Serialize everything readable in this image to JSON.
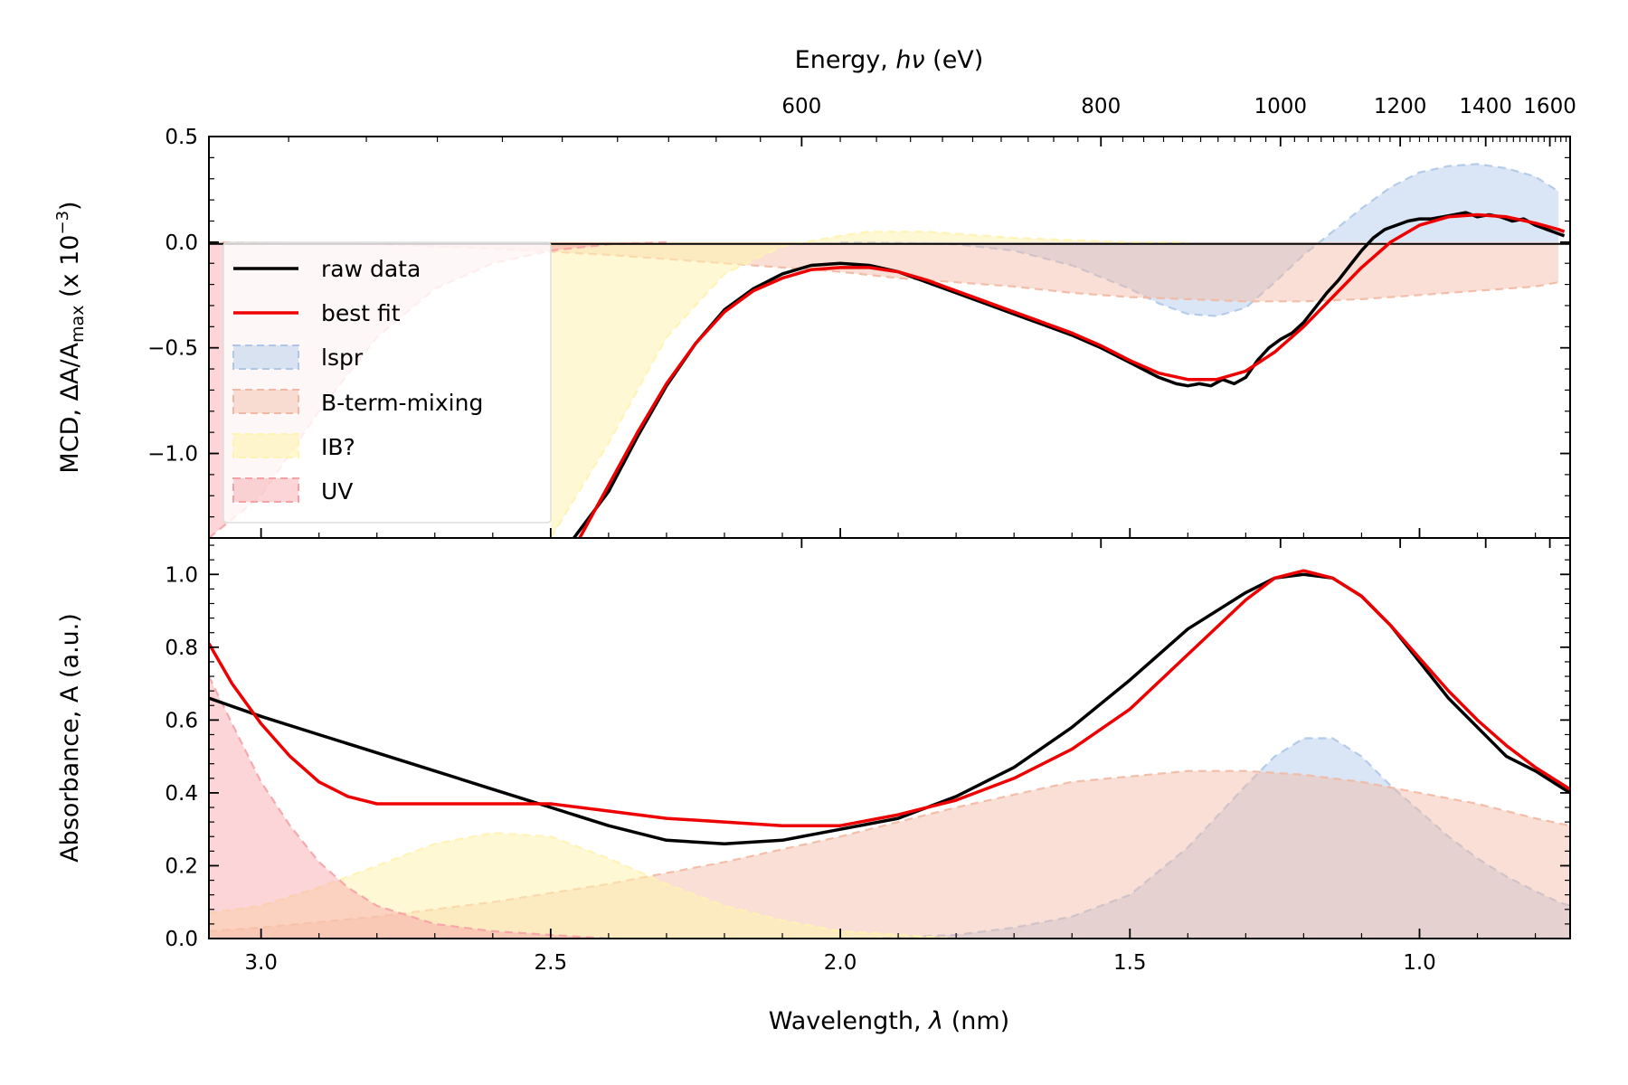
{
  "chart_data": [
    {
      "panel": "top",
      "type": "line",
      "ylabel": "MCD, ΔA/A",
      "ylabel_sub": "max",
      "ylabel_tail": " (x 10",
      "ylabel_sup": "−3",
      "ylabel_close": ")",
      "top_axis_label_prefix": "Energy, ",
      "top_axis_label_var": "hν",
      "top_axis_label_unit": " (eV)",
      "xlim": [
        3.09,
        0.74
      ],
      "ylim": [
        -1.4,
        0.5
      ],
      "yticks": [
        0.5,
        0.0,
        -0.5,
        -1.0
      ],
      "ytick_labels": [
        "0.5",
        "0.0",
        "−0.5",
        "−1.0"
      ],
      "top_ticks": [
        600,
        800,
        1000,
        1200,
        1400,
        1600
      ],
      "top_tick_labels": [
        "600",
        "800",
        "1000",
        "1200",
        "1400",
        "1600"
      ],
      "legend_position": "upper-left",
      "legend": [
        {
          "label": "raw data",
          "kind": "line",
          "color": "#000000"
        },
        {
          "label": "best fit",
          "kind": "line",
          "color": "#ee0000"
        },
        {
          "label": "lspr",
          "kind": "fill",
          "color": "#aec7e8"
        },
        {
          "label": "B-term-mixing",
          "kind": "fill",
          "color": "#f2b8a2"
        },
        {
          "label": "IB?",
          "kind": "fill",
          "color": "#fff3b0"
        },
        {
          "label": "UV",
          "kind": "fill",
          "color": "#f7a1a6"
        }
      ],
      "series": [
        {
          "name": "raw data",
          "color": "#000000",
          "x": [
            2.46,
            2.4,
            2.35,
            2.3,
            2.25,
            2.2,
            2.15,
            2.1,
            2.05,
            2.0,
            1.95,
            1.9,
            1.85,
            1.8,
            1.75,
            1.7,
            1.65,
            1.6,
            1.55,
            1.5,
            1.45,
            1.42,
            1.4,
            1.38,
            1.36,
            1.34,
            1.32,
            1.3,
            1.28,
            1.26,
            1.24,
            1.22,
            1.2,
            1.18,
            1.16,
            1.14,
            1.12,
            1.1,
            1.08,
            1.06,
            1.04,
            1.02,
            1.0,
            0.98,
            0.96,
            0.94,
            0.92,
            0.9,
            0.88,
            0.86,
            0.84,
            0.82,
            0.8,
            0.78,
            0.76,
            0.75
          ],
          "y": [
            -1.4,
            -1.18,
            -0.92,
            -0.68,
            -0.48,
            -0.32,
            -0.22,
            -0.15,
            -0.11,
            -0.1,
            -0.11,
            -0.14,
            -0.19,
            -0.24,
            -0.29,
            -0.34,
            -0.39,
            -0.44,
            -0.5,
            -0.57,
            -0.64,
            -0.67,
            -0.68,
            -0.67,
            -0.68,
            -0.65,
            -0.67,
            -0.64,
            -0.56,
            -0.5,
            -0.46,
            -0.43,
            -0.38,
            -0.31,
            -0.24,
            -0.18,
            -0.11,
            -0.04,
            0.02,
            0.06,
            0.08,
            0.1,
            0.11,
            0.11,
            0.12,
            0.13,
            0.14,
            0.12,
            0.13,
            0.12,
            0.1,
            0.11,
            0.08,
            0.06,
            0.04,
            0.03
          ]
        },
        {
          "name": "best fit",
          "color": "#ee0000",
          "x": [
            2.45,
            2.4,
            2.35,
            2.3,
            2.25,
            2.2,
            2.15,
            2.1,
            2.05,
            2.0,
            1.95,
            1.9,
            1.85,
            1.8,
            1.75,
            1.7,
            1.65,
            1.6,
            1.55,
            1.5,
            1.45,
            1.4,
            1.35,
            1.3,
            1.25,
            1.2,
            1.15,
            1.1,
            1.05,
            1.0,
            0.95,
            0.9,
            0.85,
            0.8,
            0.76,
            0.75
          ],
          "y": [
            -1.4,
            -1.15,
            -0.9,
            -0.67,
            -0.48,
            -0.33,
            -0.23,
            -0.17,
            -0.13,
            -0.12,
            -0.12,
            -0.14,
            -0.18,
            -0.23,
            -0.28,
            -0.33,
            -0.38,
            -0.43,
            -0.49,
            -0.56,
            -0.62,
            -0.65,
            -0.65,
            -0.61,
            -0.52,
            -0.4,
            -0.26,
            -0.12,
            0.0,
            0.08,
            0.12,
            0.13,
            0.12,
            0.09,
            0.06,
            0.05
          ]
        },
        {
          "name": "lspr",
          "color": "#aec7e8",
          "x": [
            2.0,
            1.9,
            1.8,
            1.7,
            1.6,
            1.5,
            1.45,
            1.4,
            1.35,
            1.3,
            1.25,
            1.2,
            1.15,
            1.1,
            1.05,
            1.0,
            0.95,
            0.9,
            0.85,
            0.8,
            0.76
          ],
          "y": [
            0.0,
            -0.003,
            -0.01,
            -0.04,
            -0.11,
            -0.22,
            -0.29,
            -0.34,
            -0.35,
            -0.31,
            -0.19,
            -0.06,
            0.05,
            0.16,
            0.26,
            0.33,
            0.36,
            0.37,
            0.35,
            0.31,
            0.24
          ]
        },
        {
          "name": "B-term-mixing",
          "color": "#f2b8a2",
          "x": [
            3.09,
            3.0,
            2.9,
            2.8,
            2.7,
            2.6,
            2.5,
            2.4,
            2.3,
            2.2,
            2.1,
            2.0,
            1.9,
            1.8,
            1.7,
            1.6,
            1.5,
            1.4,
            1.3,
            1.2,
            1.1,
            1.0,
            0.9,
            0.8,
            0.76
          ],
          "y": [
            0.0,
            -0.002,
            -0.005,
            -0.01,
            -0.02,
            -0.03,
            -0.045,
            -0.06,
            -0.08,
            -0.1,
            -0.12,
            -0.14,
            -0.17,
            -0.19,
            -0.21,
            -0.24,
            -0.26,
            -0.27,
            -0.28,
            -0.28,
            -0.27,
            -0.25,
            -0.23,
            -0.21,
            -0.19
          ]
        },
        {
          "name": "IB?",
          "color": "#fff3b0",
          "x": [
            2.5,
            2.4,
            2.3,
            2.2,
            2.1,
            2.0,
            1.95,
            1.9,
            1.85,
            1.8,
            1.75,
            1.7,
            1.6,
            1.5,
            1.4
          ],
          "y": [
            -1.4,
            -0.95,
            -0.45,
            -0.15,
            -0.02,
            0.03,
            0.05,
            0.05,
            0.05,
            0.04,
            0.03,
            0.02,
            0.01,
            0.0,
            0.0
          ]
        },
        {
          "name": "UV",
          "color": "#f7a1a6",
          "x": [
            3.09,
            3.0,
            2.9,
            2.8,
            2.7,
            2.6,
            2.5,
            2.4,
            2.3
          ],
          "y": [
            -1.4,
            -1.2,
            -0.8,
            -0.45,
            -0.22,
            -0.1,
            -0.04,
            -0.01,
            0.0
          ]
        }
      ]
    },
    {
      "panel": "bottom",
      "type": "line",
      "xlabel_prefix": "Wavelength, ",
      "xlabel_var": "λ",
      "xlabel_unit": " (nm)",
      "ylabel": "Absorbance, A (a.u.)",
      "xlim": [
        3.09,
        0.74
      ],
      "ylim": [
        0.0,
        1.1
      ],
      "xticks": [
        3.0,
        2.5,
        2.0,
        1.5,
        1.0
      ],
      "xtick_labels": [
        "3.0",
        "2.5",
        "2.0",
        "1.5",
        "1.0"
      ],
      "yticks": [
        0.0,
        0.2,
        0.4,
        0.6,
        0.8,
        1.0
      ],
      "ytick_labels": [
        "0.0",
        "0.2",
        "0.4",
        "0.6",
        "0.8",
        "1.0"
      ],
      "series": [
        {
          "name": "raw data",
          "color": "#000000",
          "x": [
            3.09,
            3.0,
            2.9,
            2.8,
            2.7,
            2.6,
            2.5,
            2.4,
            2.3,
            2.2,
            2.1,
            2.0,
            1.9,
            1.8,
            1.7,
            1.6,
            1.5,
            1.4,
            1.3,
            1.25,
            1.2,
            1.15,
            1.1,
            1.05,
            1.0,
            0.95,
            0.9,
            0.85,
            0.8,
            0.76,
            0.74
          ],
          "y": [
            0.66,
            0.61,
            0.56,
            0.51,
            0.46,
            0.41,
            0.36,
            0.31,
            0.27,
            0.26,
            0.27,
            0.3,
            0.33,
            0.39,
            0.47,
            0.58,
            0.71,
            0.85,
            0.95,
            0.99,
            1.0,
            0.99,
            0.94,
            0.86,
            0.76,
            0.66,
            0.58,
            0.5,
            0.46,
            0.42,
            0.4
          ]
        },
        {
          "name": "best fit",
          "color": "#ee0000",
          "x": [
            3.09,
            3.05,
            3.0,
            2.95,
            2.9,
            2.85,
            2.8,
            2.7,
            2.6,
            2.5,
            2.4,
            2.3,
            2.2,
            2.1,
            2.0,
            1.9,
            1.8,
            1.7,
            1.6,
            1.5,
            1.4,
            1.3,
            1.25,
            1.2,
            1.15,
            1.1,
            1.05,
            1.0,
            0.95,
            0.9,
            0.85,
            0.8,
            0.76,
            0.74
          ],
          "y": [
            0.81,
            0.7,
            0.59,
            0.5,
            0.43,
            0.39,
            0.37,
            0.37,
            0.37,
            0.37,
            0.35,
            0.33,
            0.32,
            0.31,
            0.31,
            0.34,
            0.38,
            0.44,
            0.52,
            0.63,
            0.78,
            0.93,
            0.99,
            1.01,
            0.99,
            0.94,
            0.86,
            0.77,
            0.68,
            0.6,
            0.53,
            0.47,
            0.43,
            0.41
          ]
        },
        {
          "name": "lspr",
          "color": "#aec7e8",
          "x": [
            1.95,
            1.8,
            1.7,
            1.6,
            1.5,
            1.4,
            1.3,
            1.25,
            1.2,
            1.15,
            1.1,
            1.05,
            1.0,
            0.95,
            0.9,
            0.85,
            0.8,
            0.76,
            0.74
          ],
          "y": [
            0.0,
            0.01,
            0.03,
            0.06,
            0.12,
            0.25,
            0.42,
            0.5,
            0.55,
            0.55,
            0.5,
            0.42,
            0.35,
            0.28,
            0.22,
            0.17,
            0.13,
            0.1,
            0.09
          ]
        },
        {
          "name": "B-term-mixing",
          "color": "#f2b8a2",
          "x": [
            3.09,
            3.0,
            2.8,
            2.6,
            2.4,
            2.2,
            2.0,
            1.8,
            1.6,
            1.4,
            1.3,
            1.2,
            1.1,
            1.0,
            0.9,
            0.8,
            0.74
          ],
          "y": [
            0.02,
            0.03,
            0.06,
            0.1,
            0.15,
            0.21,
            0.28,
            0.36,
            0.43,
            0.46,
            0.46,
            0.45,
            0.43,
            0.4,
            0.37,
            0.33,
            0.31
          ]
        },
        {
          "name": "IB?",
          "color": "#fff3b0",
          "x": [
            3.09,
            3.0,
            2.9,
            2.8,
            2.7,
            2.6,
            2.5,
            2.4,
            2.3,
            2.2,
            2.1,
            2.0,
            1.9,
            1.8
          ],
          "y": [
            0.07,
            0.09,
            0.14,
            0.2,
            0.26,
            0.29,
            0.28,
            0.22,
            0.15,
            0.09,
            0.05,
            0.02,
            0.01,
            0.0
          ]
        },
        {
          "name": "UV",
          "color": "#f7a1a6",
          "x": [
            3.09,
            3.05,
            3.0,
            2.95,
            2.9,
            2.85,
            2.8,
            2.7,
            2.6,
            2.5,
            2.4
          ],
          "y": [
            0.72,
            0.59,
            0.43,
            0.31,
            0.21,
            0.14,
            0.09,
            0.04,
            0.02,
            0.01,
            0.0
          ]
        }
      ]
    }
  ]
}
